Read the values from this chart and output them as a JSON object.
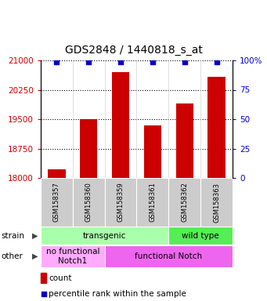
{
  "title": "GDS2848 / 1440818_s_at",
  "samples": [
    "GSM158357",
    "GSM158360",
    "GSM158359",
    "GSM158361",
    "GSM158362",
    "GSM158363"
  ],
  "counts": [
    18220,
    19500,
    20700,
    19350,
    19900,
    20580
  ],
  "percentiles": [
    99,
    99,
    99,
    99,
    99,
    99
  ],
  "ylim_left": [
    18000,
    21000
  ],
  "ylim_right": [
    0,
    100
  ],
  "yticks_left": [
    18000,
    18750,
    19500,
    20250,
    21000
  ],
  "yticks_right": [
    0,
    25,
    50,
    75,
    100
  ],
  "bar_color": "#cc0000",
  "dot_color": "#0000cc",
  "strain_labels": [
    {
      "text": "transgenic",
      "start": 0,
      "end": 4,
      "color": "#aaffaa"
    },
    {
      "text": "wild type",
      "start": 4,
      "end": 6,
      "color": "#55ee55"
    }
  ],
  "other_labels": [
    {
      "text": "no functional\nNotch1",
      "start": 0,
      "end": 2,
      "color": "#ffaaff"
    },
    {
      "text": "functional Notch",
      "start": 2,
      "end": 6,
      "color": "#ee66ee"
    }
  ],
  "strain_row_label": "strain",
  "other_row_label": "other",
  "legend_count_label": "count",
  "legend_pct_label": "percentile rank within the sample",
  "tick_color_left": "#cc0000",
  "tick_color_right": "#0000cc",
  "title_fontsize": 10,
  "tick_fontsize": 7.5,
  "bar_width": 0.55,
  "n_samples": 6
}
